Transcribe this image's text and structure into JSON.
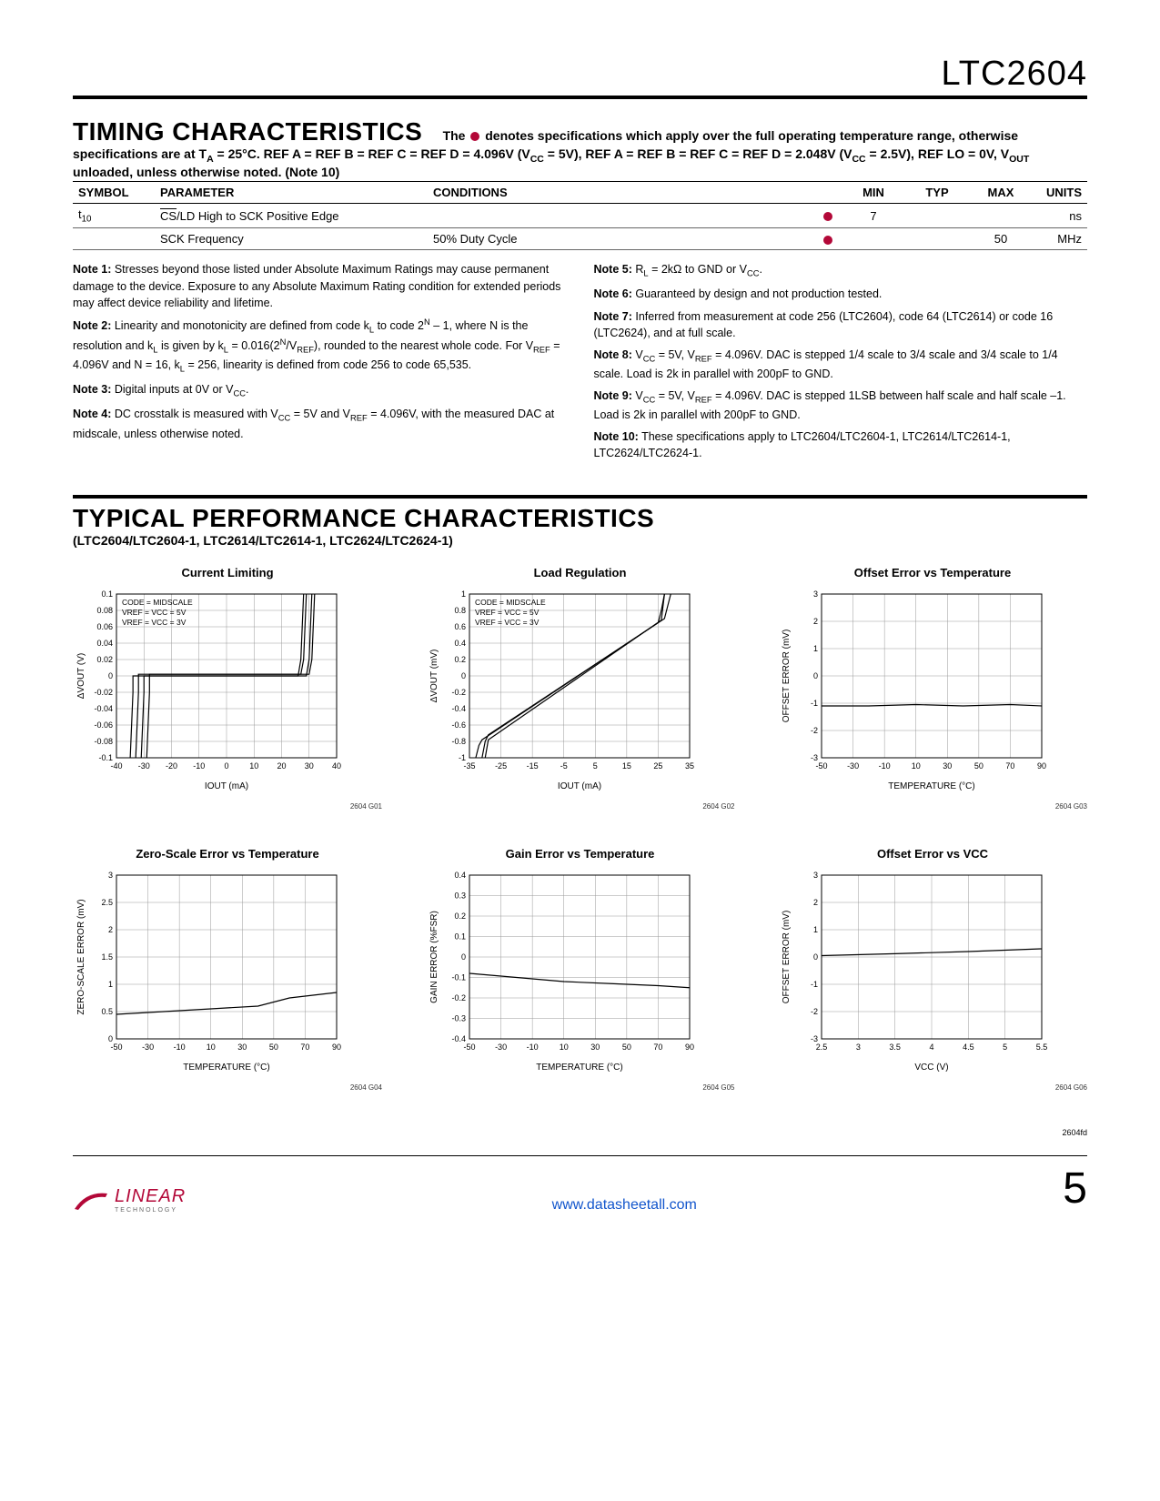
{
  "part_number": "LTC2604",
  "doc_code": "2604fd",
  "section1": {
    "title": "TIMING CHARACTERISTICS",
    "intro_prefix": "The ",
    "intro_suffix": " denotes specifications which apply over the full operating temperature range, otherwise specifications are at T",
    "intro_line2": " = 25°C. REF A = REF B = REF C = REF D = 4.096V (V",
    "intro_line3": " = 5V), REF A = REF B = REF C = REF D = 2.048V (V",
    "intro_line4": " = 2.5V), REF LO = 0V, V",
    "intro_line5": " unloaded, unless otherwise noted. (Note 10)"
  },
  "table": {
    "headers": {
      "symbol": "SYMBOL",
      "parameter": "PARAMETER",
      "conditions": "CONDITIONS",
      "min": "MIN",
      "typ": "TYP",
      "max": "MAX",
      "units": "UNITS"
    },
    "rows": [
      {
        "symbol_pre": "t",
        "symbol_sub": "10",
        "parameter_pre": "CS",
        "parameter_rest": "/LD High to SCK Positive Edge",
        "conditions": "",
        "dot": true,
        "min": "7",
        "typ": "",
        "max": "",
        "units": "ns"
      },
      {
        "symbol_pre": "",
        "symbol_sub": "",
        "parameter_pre": "",
        "parameter_rest": "SCK Frequency",
        "conditions": "50% Duty Cycle",
        "dot": true,
        "min": "",
        "typ": "",
        "max": "50",
        "units": "MHz"
      }
    ]
  },
  "notes": {
    "left": [
      "Note 1: Stresses beyond those listed under Absolute Maximum Ratings may cause permanent damage to the device. Exposure to any Absolute Maximum Rating condition for extended periods may affect device reliability and lifetime.",
      "Note 2: Linearity and monotonicity are defined from code kL to code 2^N – 1, where N is the resolution and kL is given by kL = 0.016(2^N/VREF), rounded to the nearest whole code. For VREF = 4.096V and N = 16, kL = 256, linearity is defined from code 256 to code 65,535.",
      "Note 3: Digital inputs at 0V or VCC.",
      "Note 4: DC crosstalk is measured with VCC = 5V and VREF = 4.096V, with the measured DAC at midscale, unless otherwise noted."
    ],
    "right": [
      "Note 5: RL = 2kΩ to GND or VCC.",
      "Note 6: Guaranteed by design and not production tested.",
      "Note 7: Inferred from measurement at code 256 (LTC2604), code 64 (LTC2614) or code 16 (LTC2624), and at full scale.",
      "Note 8: VCC = 5V, VREF = 4.096V. DAC is stepped 1/4 scale to 3/4 scale and 3/4 scale to 1/4 scale. Load is 2k in parallel with 200pF to GND.",
      "Note 9: VCC = 5V, VREF = 4.096V. DAC is stepped 1LSB between half scale and half scale –1. Load is 2k in parallel with 200pF to GND.",
      "Note 10: These specifications apply to LTC2604/LTC2604-1, LTC2614/LTC2614-1, LTC2624/LTC2624-1."
    ]
  },
  "section2": {
    "title": "TYPICAL PERFORMANCE CHARACTERISTICS",
    "subtitle": "(LTC2604/LTC2604-1, LTC2614/LTC2614-1, LTC2624/LTC2624-1)"
  },
  "charts": [
    {
      "id": "2604 G01",
      "title": "Current Limiting",
      "type": "line",
      "xlabel": "IOUT (mA)",
      "ylabel": "ΔVOUT (V)",
      "xlim": [
        -40,
        40
      ],
      "ylim": [
        -0.1,
        0.1
      ],
      "xticks": [
        -40,
        -30,
        -20,
        -10,
        0,
        10,
        20,
        30,
        40
      ],
      "yticks": [
        -0.1,
        -0.08,
        -0.06,
        -0.04,
        -0.02,
        0,
        0.02,
        0.04,
        0.06,
        0.08,
        0.1
      ],
      "annotations": [
        "CODE = MIDSCALE",
        "VREF = VCC = 5V",
        "VREF = VCC = 3V"
      ],
      "series": [
        {
          "color": "#000",
          "width": 1.2,
          "points": [
            [
              -35,
              -0.1
            ],
            [
              -34,
              -0.02
            ],
            [
              -34,
              0
            ],
            [
              26,
              0
            ],
            [
              27,
              0.02
            ],
            [
              28,
              0.1
            ]
          ]
        },
        {
          "color": "#000",
          "width": 1.2,
          "points": [
            [
              -33,
              -0.1
            ],
            [
              -32,
              -0.02
            ],
            [
              -32,
              0.002
            ],
            [
              27,
              0.002
            ],
            [
              28,
              0.02
            ],
            [
              29,
              0.1
            ]
          ]
        },
        {
          "color": "#000",
          "width": 1.2,
          "points": [
            [
              -31,
              -0.1
            ],
            [
              -30,
              -0.02
            ],
            [
              -30,
              0
            ],
            [
              29,
              0
            ],
            [
              30,
              0.02
            ],
            [
              31,
              0.1
            ]
          ]
        },
        {
          "color": "#000",
          "width": 1.2,
          "points": [
            [
              -29,
              -0.1
            ],
            [
              -28,
              -0.02
            ],
            [
              -28,
              0.002
            ],
            [
              30,
              0.002
            ],
            [
              31,
              0.02
            ],
            [
              32,
              0.1
            ]
          ]
        }
      ]
    },
    {
      "id": "2604 G02",
      "title": "Load Regulation",
      "type": "line",
      "xlabel": "IOUT (mA)",
      "ylabel": "ΔVOUT (mV)",
      "xlim": [
        -35,
        35
      ],
      "ylim": [
        -1.0,
        1.0
      ],
      "xticks": [
        -35,
        -25,
        -15,
        -5,
        5,
        15,
        25,
        35
      ],
      "yticks": [
        -1.0,
        -0.8,
        -0.6,
        -0.4,
        -0.2,
        0,
        0.2,
        0.4,
        0.6,
        0.8,
        1.0
      ],
      "annotations": [
        "CODE = MIDSCALE",
        "VREF = VCC = 5V",
        "VREF = VCC = 3V"
      ],
      "series": [
        {
          "color": "#000",
          "width": 1.2,
          "points": [
            [
              -33,
              -1.0
            ],
            [
              -32,
              -0.85
            ],
            [
              -31,
              -0.78
            ],
            [
              25,
              0.65
            ],
            [
              26,
              0.8
            ],
            [
              27,
              1.0
            ]
          ]
        },
        {
          "color": "#000",
          "width": 1.2,
          "points": [
            [
              -31,
              -1.0
            ],
            [
              -30,
              -0.8
            ],
            [
              -29,
              -0.72
            ],
            [
              27,
              0.7
            ],
            [
              28,
              0.85
            ],
            [
              29,
              1.0
            ]
          ]
        },
        {
          "color": "#000",
          "width": 1.2,
          "points": [
            [
              -30,
              -1.0
            ],
            [
              -29,
              -0.78
            ],
            [
              26,
              0.68
            ],
            [
              27,
              1.0
            ]
          ]
        }
      ]
    },
    {
      "id": "2604 G03",
      "title": "Offset Error vs Temperature",
      "type": "line",
      "xlabel": "TEMPERATURE (°C)",
      "ylabel": "OFFSET ERROR (mV)",
      "xlim": [
        -50,
        90
      ],
      "ylim": [
        -3,
        3
      ],
      "xticks": [
        -50,
        -30,
        -10,
        10,
        30,
        50,
        70,
        90
      ],
      "yticks": [
        -3,
        -2,
        -1,
        0,
        1,
        2,
        3
      ],
      "series": [
        {
          "color": "#000",
          "width": 1.2,
          "points": [
            [
              -50,
              -1.1
            ],
            [
              -20,
              -1.1
            ],
            [
              10,
              -1.05
            ],
            [
              40,
              -1.1
            ],
            [
              70,
              -1.05
            ],
            [
              90,
              -1.1
            ]
          ]
        }
      ]
    },
    {
      "id": "2604 G04",
      "title": "Zero-Scale Error vs Temperature",
      "type": "line",
      "xlabel": "TEMPERATURE (°C)",
      "ylabel": "ZERO-SCALE ERROR (mV)",
      "xlim": [
        -50,
        90
      ],
      "ylim": [
        0,
        3
      ],
      "xticks": [
        -50,
        -30,
        -10,
        10,
        30,
        50,
        70,
        90
      ],
      "yticks": [
        0,
        0.5,
        1.0,
        1.5,
        2.0,
        2.5,
        3.0
      ],
      "series": [
        {
          "color": "#000",
          "width": 1.2,
          "points": [
            [
              -50,
              0.45
            ],
            [
              -20,
              0.5
            ],
            [
              10,
              0.55
            ],
            [
              40,
              0.6
            ],
            [
              60,
              0.75
            ],
            [
              90,
              0.85
            ]
          ]
        }
      ]
    },
    {
      "id": "2604 G05",
      "title": "Gain Error vs Temperature",
      "type": "line",
      "xlabel": "TEMPERATURE (°C)",
      "ylabel": "GAIN ERROR (%FSR)",
      "xlim": [
        -50,
        90
      ],
      "ylim": [
        -0.4,
        0.4
      ],
      "xticks": [
        -50,
        -30,
        -10,
        10,
        30,
        50,
        70,
        90
      ],
      "yticks": [
        -0.4,
        -0.3,
        -0.2,
        -0.1,
        0,
        0.1,
        0.2,
        0.3,
        0.4
      ],
      "series": [
        {
          "color": "#000",
          "width": 1.2,
          "points": [
            [
              -50,
              -0.08
            ],
            [
              -20,
              -0.1
            ],
            [
              10,
              -0.12
            ],
            [
              40,
              -0.13
            ],
            [
              70,
              -0.14
            ],
            [
              90,
              -0.15
            ]
          ]
        }
      ]
    },
    {
      "id": "2604 G06",
      "title": "Offset Error vs VCC",
      "type": "line",
      "xlabel": "VCC (V)",
      "ylabel": "OFFSET ERROR (mV)",
      "xlim": [
        2.5,
        5.5
      ],
      "ylim": [
        -3,
        3
      ],
      "xticks": [
        2.5,
        3,
        3.5,
        4,
        4.5,
        5,
        5.5
      ],
      "yticks": [
        -3,
        -2,
        -1,
        0,
        1,
        2,
        3
      ],
      "series": [
        {
          "color": "#000",
          "width": 1.2,
          "points": [
            [
              2.5,
              0.05
            ],
            [
              3.5,
              0.12
            ],
            [
              4.5,
              0.2
            ],
            [
              5.5,
              0.3
            ]
          ]
        }
      ]
    }
  ],
  "footer": {
    "link": "www.datasheetall.com",
    "logo_text": "LINEAR",
    "logo_sub": "TECHNOLOGY",
    "page": "5"
  }
}
